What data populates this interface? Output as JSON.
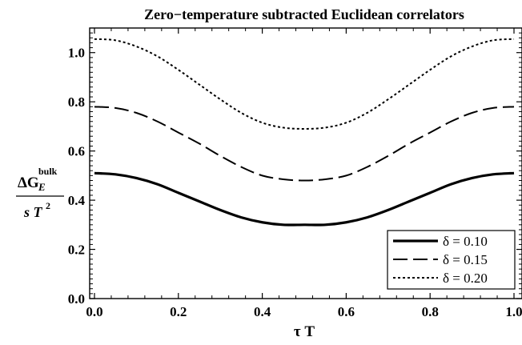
{
  "chart_data": {
    "type": "line",
    "title": "Zero−temperature subtracted Euclidean correlators",
    "xlabel": "τ T",
    "ylabel": {
      "numerator_main": "ΔG",
      "numerator_sub": "E",
      "numerator_sup": "bulk",
      "denominator_main": "s T",
      "denominator_sup": "2"
    },
    "xlim": [
      0.0,
      1.0
    ],
    "ylim": [
      0.0,
      1.1
    ],
    "xticks": [
      "0.0",
      "0.2",
      "0.4",
      "0.6",
      "0.8",
      "1.0"
    ],
    "yticks": [
      "0.0",
      "0.2",
      "0.4",
      "0.6",
      "0.8",
      "1.0"
    ],
    "grid": false,
    "legend_position": "bottom-right",
    "x": [
      0.0,
      0.05,
      0.1,
      0.15,
      0.2,
      0.25,
      0.3,
      0.35,
      0.4,
      0.45,
      0.5,
      0.55,
      0.6,
      0.65,
      0.7,
      0.75,
      0.8,
      0.85,
      0.9,
      0.95,
      1.0
    ],
    "series": [
      {
        "name": "δ = 0.10",
        "style": "solid",
        "color": "#000000",
        "values": [
          0.51,
          0.505,
          0.49,
          0.465,
          0.43,
          0.395,
          0.36,
          0.33,
          0.31,
          0.3,
          0.3,
          0.3,
          0.31,
          0.33,
          0.36,
          0.395,
          0.43,
          0.465,
          0.49,
          0.505,
          0.51
        ]
      },
      {
        "name": "δ = 0.15",
        "style": "dashed",
        "color": "#000000",
        "values": [
          0.78,
          0.775,
          0.755,
          0.72,
          0.675,
          0.63,
          0.58,
          0.535,
          0.5,
          0.485,
          0.48,
          0.485,
          0.5,
          0.535,
          0.58,
          0.63,
          0.675,
          0.72,
          0.755,
          0.775,
          0.78
        ]
      },
      {
        "name": "δ = 0.20",
        "style": "dotted",
        "color": "#000000",
        "values": [
          1.055,
          1.05,
          1.025,
          0.985,
          0.93,
          0.87,
          0.81,
          0.755,
          0.715,
          0.695,
          0.69,
          0.695,
          0.715,
          0.755,
          0.81,
          0.87,
          0.93,
          0.985,
          1.025,
          1.05,
          1.055
        ]
      }
    ]
  }
}
